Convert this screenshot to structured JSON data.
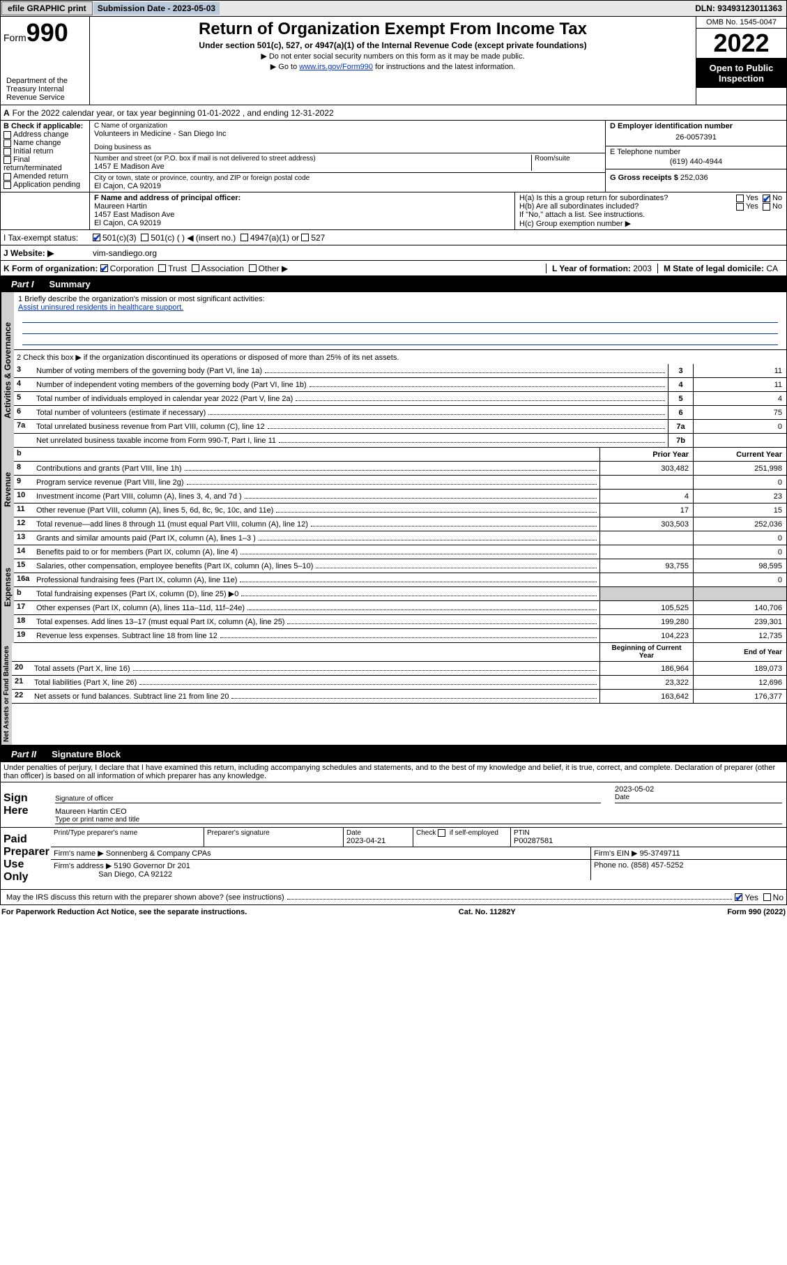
{
  "topbar": {
    "efile": "efile GRAPHIC print",
    "subdate_label": "Submission Date - ",
    "subdate": "2023-05-03",
    "dln": "DLN: 93493123011363"
  },
  "header": {
    "form_prefix": "Form",
    "form_number": "990",
    "dept": "Department of the Treasury Internal Revenue Service",
    "title": "Return of Organization Exempt From Income Tax",
    "subtitle": "Under section 501(c), 527, or 4947(a)(1) of the Internal Revenue Code (except private foundations)",
    "instr1": "▶ Do not enter social security numbers on this form as it may be made public.",
    "instr2_pre": "▶ Go to ",
    "instr2_link": "www.irs.gov/Form990",
    "instr2_post": " for instructions and the latest information.",
    "omb": "OMB No. 1545-0047",
    "year": "2022",
    "open": "Open to Public Inspection"
  },
  "A": {
    "line": "For the 2022 calendar year, or tax year beginning 01-01-2022      , and ending 12-31-2022"
  },
  "B": {
    "label": "B Check if applicable:",
    "opts": [
      "Address change",
      "Name change",
      "Initial return",
      "Final return/terminated",
      "Amended return",
      "Application pending"
    ]
  },
  "C": {
    "name_label": "C Name of organization",
    "name": "Volunteers in Medicine - San Diego Inc",
    "dba_label": "Doing business as",
    "addr_label": "Number and street (or P.O. box if mail is not delivered to street address)",
    "room_label": "Room/suite",
    "addr": "1457 E Madison Ave",
    "city_label": "City or town, state or province, country, and ZIP or foreign postal code",
    "city": "El Cajon, CA  92019"
  },
  "D": {
    "label": "D Employer identification number",
    "val": "26-0057391"
  },
  "E": {
    "label": "E Telephone number",
    "val": "(619) 440-4944"
  },
  "G": {
    "label": "G Gross receipts $",
    "val": "252,036"
  },
  "F": {
    "label": "F Name and address of principal officer:",
    "name": "Maureen Hartin",
    "addr": "1457 East Madison Ave",
    "city": "El Cajon, CA  92019"
  },
  "H": {
    "a": "H(a)  Is this a group return for subordinates?",
    "b": "H(b)  Are all subordinates included?",
    "ifno": "If \"No,\" attach a list. See instructions.",
    "c": "H(c)  Group exemption number ▶"
  },
  "I": {
    "label": "I    Tax-exempt status:",
    "o1": "501(c)(3)",
    "o2": "501(c) (   ) ◀ (insert no.)",
    "o3": "4947(a)(1) or",
    "o4": "527"
  },
  "J": {
    "label": "J    Website: ▶",
    "val": "vim-sandiego.org"
  },
  "K": {
    "label": "K Form of organization:",
    "opts": [
      "Corporation",
      "Trust",
      "Association",
      "Other ▶"
    ]
  },
  "L": {
    "label": "L Year of formation:",
    "val": "2003"
  },
  "M": {
    "label": "M State of legal domicile:",
    "val": "CA"
  },
  "part1": {
    "label": "Part I",
    "title": "Summary",
    "vlabels": {
      "ag": "Activities & Governance",
      "rev": "Revenue",
      "exp": "Expenses",
      "na": "Net Assets or Fund Balances"
    },
    "q1_label": "1   Briefly describe the organization's mission or most significant activities:",
    "q1_text": "Assist uninsured residents in healthcare support.",
    "q2": "2   Check this box ▶       if the organization discontinued its operations or disposed of more than 25% of its net assets.",
    "rows_ag": [
      {
        "n": "3",
        "t": "Number of voting members of the governing body (Part VI, line 1a)",
        "c": "3",
        "v": "11"
      },
      {
        "n": "4",
        "t": "Number of independent voting members of the governing body (Part VI, line 1b)",
        "c": "4",
        "v": "11"
      },
      {
        "n": "5",
        "t": "Total number of individuals employed in calendar year 2022 (Part V, line 2a)",
        "c": "5",
        "v": "4"
      },
      {
        "n": "6",
        "t": "Total number of volunteers (estimate if necessary)",
        "c": "6",
        "v": "75"
      },
      {
        "n": "7a",
        "t": "Total unrelated business revenue from Part VIII, column (C), line 12",
        "c": "7a",
        "v": "0"
      },
      {
        "n": "",
        "t": "Net unrelated business taxable income from Form 990-T, Part I, line 11",
        "c": "7b",
        "v": ""
      }
    ],
    "colh": {
      "b": "b",
      "py": "Prior Year",
      "cy": "Current Year",
      "bcy": "Beginning of Current Year",
      "ey": "End of Year"
    },
    "rows_rev": [
      {
        "n": "8",
        "t": "Contributions and grants (Part VIII, line 1h)",
        "p": "303,482",
        "c": "251,998"
      },
      {
        "n": "9",
        "t": "Program service revenue (Part VIII, line 2g)",
        "p": "",
        "c": "0"
      },
      {
        "n": "10",
        "t": "Investment income (Part VIII, column (A), lines 3, 4, and 7d )",
        "p": "4",
        "c": "23"
      },
      {
        "n": "11",
        "t": "Other revenue (Part VIII, column (A), lines 5, 6d, 8c, 9c, 10c, and 11e)",
        "p": "17",
        "c": "15"
      },
      {
        "n": "12",
        "t": "Total revenue—add lines 8 through 11 (must equal Part VIII, column (A), line 12)",
        "p": "303,503",
        "c": "252,036"
      }
    ],
    "rows_exp": [
      {
        "n": "13",
        "t": "Grants and similar amounts paid (Part IX, column (A), lines 1–3 )",
        "p": "",
        "c": "0"
      },
      {
        "n": "14",
        "t": "Benefits paid to or for members (Part IX, column (A), line 4)",
        "p": "",
        "c": "0"
      },
      {
        "n": "15",
        "t": "Salaries, other compensation, employee benefits (Part IX, column (A), lines 5–10)",
        "p": "93,755",
        "c": "98,595"
      },
      {
        "n": "16a",
        "t": "Professional fundraising fees (Part IX, column (A), line 11e)",
        "p": "",
        "c": "0"
      },
      {
        "n": "b",
        "t": "Total fundraising expenses (Part IX, column (D), line 25) ▶0",
        "p": "",
        "c": "",
        "shaded": true
      },
      {
        "n": "17",
        "t": "Other expenses (Part IX, column (A), lines 11a–11d, 11f–24e)",
        "p": "105,525",
        "c": "140,706"
      },
      {
        "n": "18",
        "t": "Total expenses. Add lines 13–17 (must equal Part IX, column (A), line 25)",
        "p": "199,280",
        "c": "239,301"
      },
      {
        "n": "19",
        "t": "Revenue less expenses. Subtract line 18 from line 12",
        "p": "104,223",
        "c": "12,735"
      }
    ],
    "rows_na": [
      {
        "n": "20",
        "t": "Total assets (Part X, line 16)",
        "p": "186,964",
        "c": "189,073"
      },
      {
        "n": "21",
        "t": "Total liabilities (Part X, line 26)",
        "p": "23,322",
        "c": "12,696"
      },
      {
        "n": "22",
        "t": "Net assets or fund balances. Subtract line 21 from line 20",
        "p": "163,642",
        "c": "176,377"
      }
    ]
  },
  "part2": {
    "label": "Part II",
    "title": "Signature Block",
    "decl": "Under penalties of perjury, I declare that I have examined this return, including accompanying schedules and statements, and to the best of my knowledge and belief, it is true, correct, and complete. Declaration of preparer (other than officer) is based on all information of which preparer has any knowledge.",
    "sign_here": "Sign Here",
    "sig_officer": "Signature of officer",
    "sig_date_lbl": "Date",
    "sig_date": "2023-05-02",
    "sig_name": "Maureen Hartin CEO",
    "type_name": "Type or print name and title",
    "paid": "Paid Preparer Use Only",
    "prep_name_lbl": "Print/Type preparer's name",
    "prep_sig_lbl": "Preparer's signature",
    "prep_date_lbl": "Date",
    "prep_date": "2023-04-21",
    "prep_check": "Check        if self-employed",
    "ptin_lbl": "PTIN",
    "ptin": "P00287581",
    "firm_name_lbl": "Firm's name    ▶",
    "firm_name": "Sonnenberg & Company CPAs",
    "firm_ein_lbl": "Firm's EIN ▶",
    "firm_ein": "95-3749711",
    "firm_addr_lbl": "Firm's address ▶",
    "firm_addr1": "5190 Governor Dr 201",
    "firm_addr2": "San Diego, CA  92122",
    "phone_lbl": "Phone no.",
    "phone": "(858) 457-5252",
    "may_irs": "May the IRS discuss this return with the preparer shown above? (see instructions)",
    "yes": "Yes",
    "no": "No"
  },
  "footer": {
    "left": "For Paperwork Reduction Act Notice, see the separate instructions.",
    "mid": "Cat. No. 11282Y",
    "right": "Form 990 (2022)"
  }
}
